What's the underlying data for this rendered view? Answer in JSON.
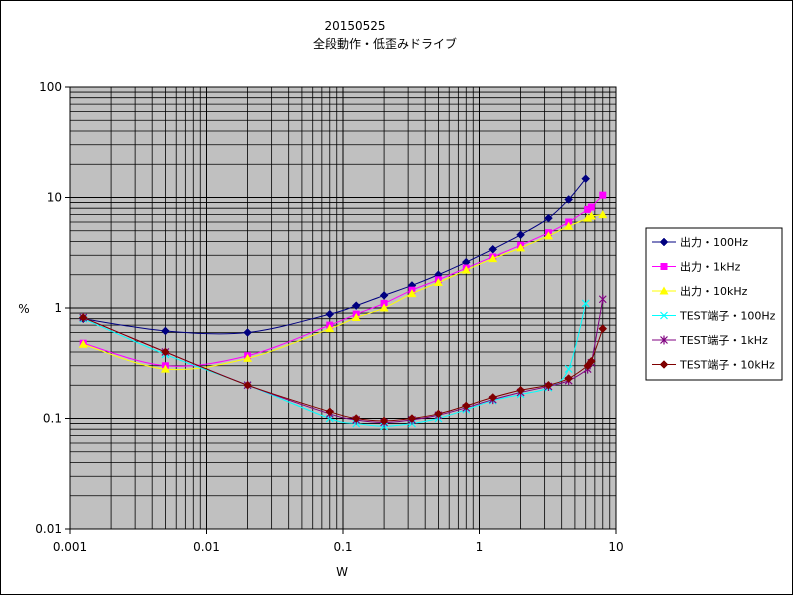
{
  "chart_data": {
    "type": "line",
    "title": "20150525",
    "subtitle": "全段動作・低歪みドライブ",
    "xlabel": "W",
    "ylabel": "%",
    "x_scale": "log",
    "y_scale": "log",
    "xlim": [
      0.001,
      10
    ],
    "ylim": [
      0.01,
      100
    ],
    "x_ticks": [
      "0.001",
      "0.01",
      "0.1",
      "1",
      "10"
    ],
    "y_ticks": [
      "0.01",
      "0.1",
      "1",
      "10",
      "100"
    ],
    "grid": true,
    "legend_position": "right",
    "plot_background": "#c0c0c0",
    "series": [
      {
        "name": "出力・100Hz",
        "color": "#000080",
        "marker": "diamond",
        "x": [
          0.00125,
          0.005,
          0.02,
          0.08,
          0.125,
          0.2,
          0.32,
          0.5,
          0.8,
          1.25,
          2,
          3.2,
          4.5,
          6
        ],
        "y": [
          0.8,
          0.62,
          0.6,
          0.88,
          1.05,
          1.3,
          1.6,
          2.0,
          2.6,
          3.4,
          4.6,
          6.5,
          9.6,
          14.8
        ]
      },
      {
        "name": "出力・1kHz",
        "color": "#ff00ff",
        "marker": "square",
        "x": [
          0.00125,
          0.005,
          0.02,
          0.08,
          0.125,
          0.2,
          0.32,
          0.5,
          0.8,
          1.25,
          2,
          3.2,
          4.5,
          6.2,
          6.6,
          8
        ],
        "y": [
          0.48,
          0.3,
          0.37,
          0.7,
          0.88,
          1.1,
          1.45,
          1.8,
          2.3,
          2.9,
          3.7,
          4.8,
          6.0,
          7.8,
          8.2,
          10.5
        ]
      },
      {
        "name": "出力・10kHz",
        "color": "#ffff00",
        "marker": "triangle",
        "x": [
          0.00125,
          0.005,
          0.02,
          0.08,
          0.125,
          0.2,
          0.32,
          0.5,
          0.8,
          1.25,
          2,
          3.2,
          4.5,
          6.2,
          6.6,
          8
        ],
        "y": [
          0.47,
          0.28,
          0.35,
          0.65,
          0.82,
          1.0,
          1.35,
          1.7,
          2.2,
          2.8,
          3.5,
          4.5,
          5.5,
          6.5,
          6.8,
          7.0
        ]
      },
      {
        "name": "TEST端子・100Hz",
        "color": "#00ffff",
        "marker": "x",
        "x": [
          0.00125,
          0.005,
          0.02,
          0.08,
          0.125,
          0.2,
          0.32,
          0.5,
          0.8,
          1.25,
          2,
          3.2,
          4.5,
          6
        ],
        "y": [
          0.8,
          0.38,
          0.2,
          0.1,
          0.09,
          0.085,
          0.09,
          0.1,
          0.12,
          0.145,
          0.165,
          0.19,
          0.28,
          1.1
        ]
      },
      {
        "name": "TEST端子・1kHz",
        "color": "#800080",
        "marker": "star",
        "x": [
          0.00125,
          0.005,
          0.02,
          0.08,
          0.125,
          0.2,
          0.32,
          0.5,
          0.8,
          1.25,
          2,
          3.2,
          4.5,
          6.2,
          6.6,
          8
        ],
        "y": [
          0.82,
          0.4,
          0.2,
          0.11,
          0.097,
          0.092,
          0.097,
          0.107,
          0.125,
          0.148,
          0.172,
          0.195,
          0.22,
          0.28,
          0.32,
          1.2
        ]
      },
      {
        "name": "TEST端子・10kHz",
        "color": "#800000",
        "marker": "diamond",
        "x": [
          0.00125,
          0.005,
          0.02,
          0.08,
          0.125,
          0.2,
          0.32,
          0.5,
          0.8,
          1.25,
          2,
          3.2,
          4.5,
          6.2,
          6.6,
          8
        ],
        "y": [
          0.82,
          0.4,
          0.2,
          0.115,
          0.1,
          0.095,
          0.1,
          0.11,
          0.13,
          0.155,
          0.18,
          0.2,
          0.23,
          0.3,
          0.33,
          0.65
        ]
      }
    ]
  }
}
